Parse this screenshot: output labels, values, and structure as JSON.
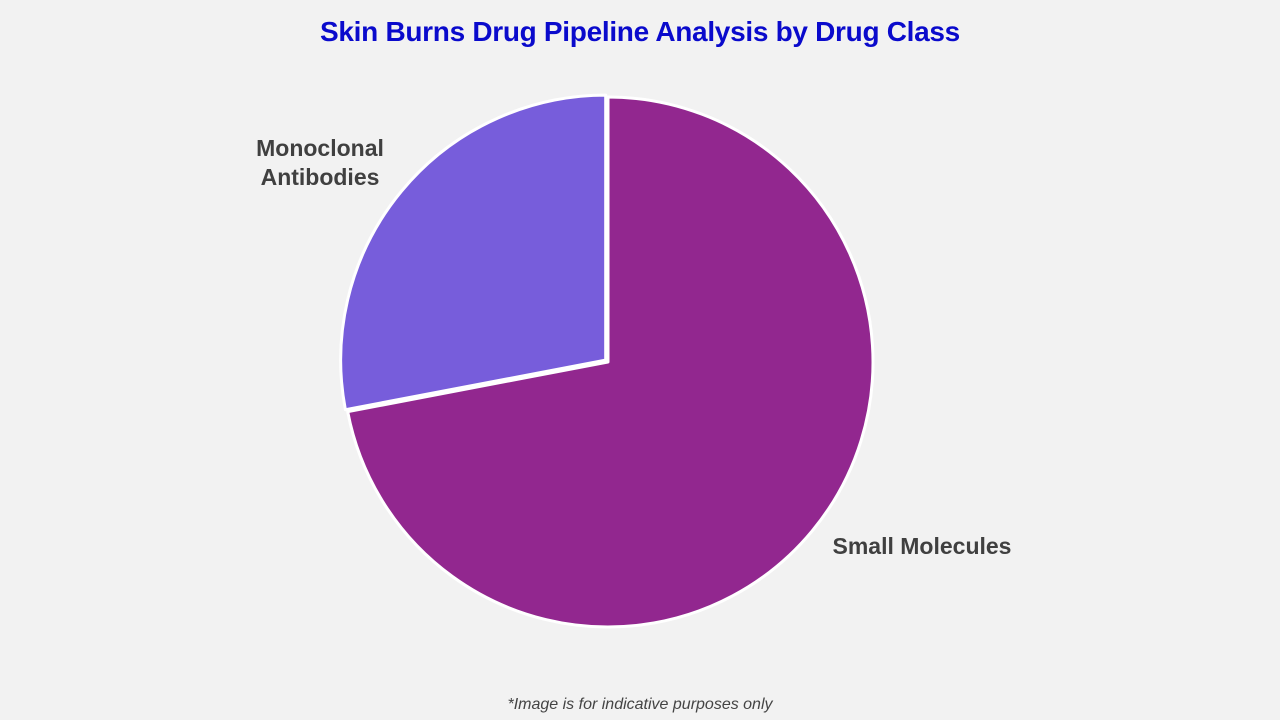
{
  "title": "Skin Burns Drug Pipeline Analysis by Drug Class",
  "footnote": "*Image is for indicative purposes only",
  "labels": {
    "monoclonal_line1": "Monoclonal",
    "monoclonal_line2": "Antibodies",
    "small_molecules": "Small Molecules"
  },
  "colors": {
    "title": "#0a0acc",
    "small_molecules": "#92278f",
    "monoclonal_antibodies": "#775ddb",
    "background": "#f2f2f2"
  },
  "chart_data": {
    "type": "pie",
    "title": "Skin Burns Drug Pipeline Analysis by Drug Class",
    "categories": [
      "Small Molecules",
      "Monoclonal Antibodies"
    ],
    "values": [
      72,
      28
    ],
    "units": "percent (estimated)",
    "legend": "none (direct labels)",
    "start_angle": "12 o'clock, clockwise",
    "exploded": [
      "Monoclonal Antibodies"
    ]
  }
}
